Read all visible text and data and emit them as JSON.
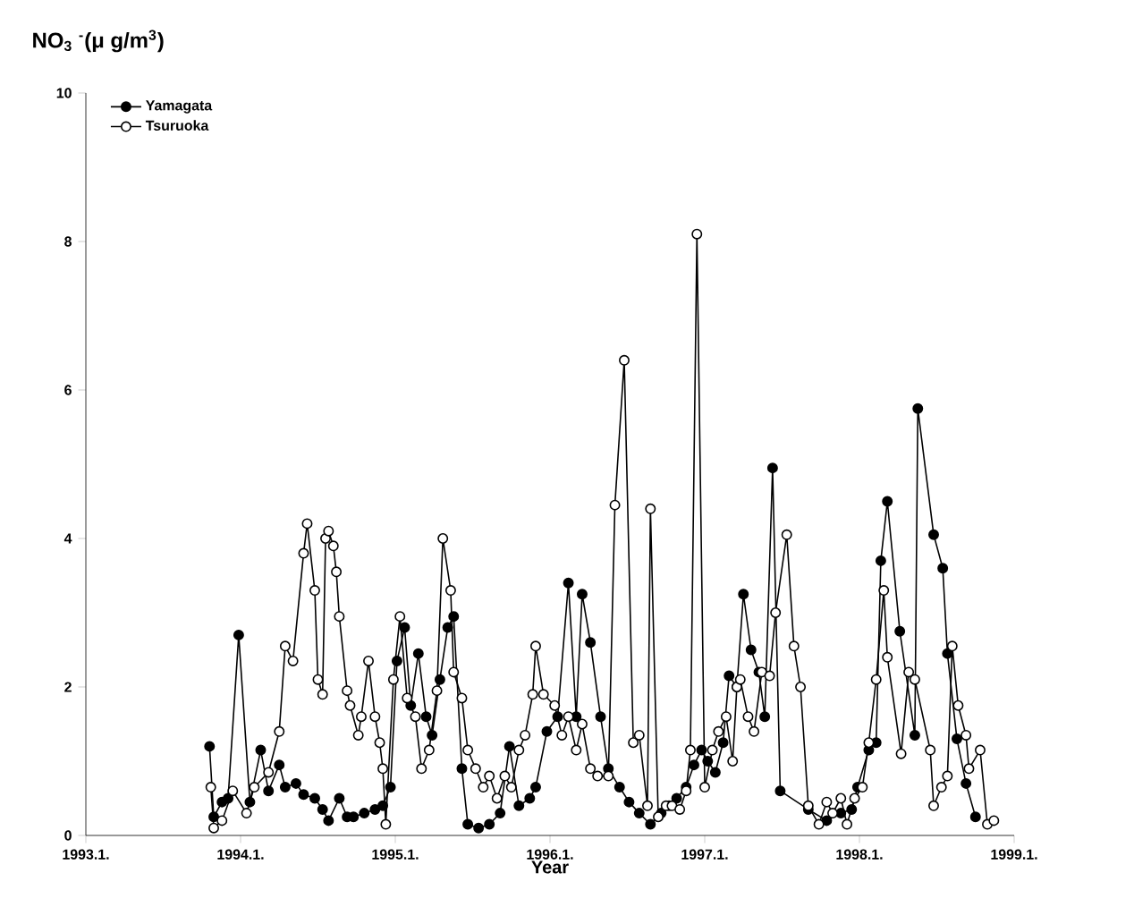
{
  "chart_data": {
    "type": "line",
    "ylabel": "NO$_{3}$ $^{-}$(μ g/m$^{3}$)",
    "xlabel": "Year",
    "xlim": [
      "1993-01",
      "1999-01"
    ],
    "ylim": [
      0,
      10
    ],
    "xticks": [
      {
        "value": "1993-01",
        "label": "1993.1."
      },
      {
        "value": "1994-01",
        "label": "1994.1."
      },
      {
        "value": "1995-01",
        "label": "1995.1."
      },
      {
        "value": "1996-01",
        "label": "1996.1."
      },
      {
        "value": "1997-01",
        "label": "1997.1."
      },
      {
        "value": "1998-01",
        "label": "1998.1."
      },
      {
        "value": "1999-01",
        "label": "1999.1."
      }
    ],
    "yticks": [
      0,
      2,
      4,
      6,
      8,
      10
    ],
    "legend": "top left",
    "marker": "circle",
    "line_style": "solid",
    "series": [
      {
        "name": "Yamagata",
        "color": "#000000",
        "x": [
          "1993-10-19",
          "1993-10-29",
          "1993-11-18",
          "1993-12-02",
          "1993-12-27",
          "1994-01-23",
          "1994-02-18",
          "1994-03-06",
          "1994-04-01",
          "1994-04-15",
          "1994-05-10",
          "1994-05-28",
          "1994-06-24",
          "1994-07-12",
          "1994-07-26",
          "1994-08-21",
          "1994-09-09",
          "1994-09-24",
          "1994-10-19",
          "1994-11-14",
          "1994-12-02",
          "1994-12-20",
          "1995-01-05",
          "1995-01-23",
          "1995-02-07",
          "1995-02-25",
          "1995-03-13",
          "1995-03-27",
          "1995-04-15",
          "1995-05-03",
          "1995-05-17",
          "1995-06-06",
          "1995-06-20",
          "1995-07-15",
          "1995-08-10",
          "1995-09-05",
          "1995-09-27",
          "1995-10-19",
          "1995-11-14",
          "1995-11-28",
          "1995-12-24",
          "1996-01-19",
          "1996-02-14",
          "1996-03-02",
          "1996-03-16",
          "1996-04-05",
          "1996-04-29",
          "1996-05-17",
          "1996-06-13",
          "1996-07-05",
          "1996-07-29",
          "1996-08-25",
          "1996-09-20",
          "1996-10-08",
          "1996-10-26",
          "1996-11-18",
          "1996-12-06",
          "1996-12-24",
          "1997-01-08",
          "1997-01-26",
          "1997-02-14",
          "1997-02-28",
          "1997-03-16",
          "1997-04-01",
          "1997-04-19",
          "1997-05-07",
          "1997-05-21",
          "1997-06-09",
          "1997-06-27",
          "1997-09-02",
          "1997-10-15",
          "1997-11-18",
          "1997-12-13",
          "1997-12-27",
          "1998-01-23",
          "1998-02-10",
          "1998-02-21",
          "1998-03-06",
          "1998-04-05",
          "1998-05-10",
          "1998-05-17",
          "1998-06-24",
          "1998-07-15",
          "1998-07-26",
          "1998-08-18",
          "1998-09-09",
          "1998-10-01"
        ],
        "values": [
          1.2,
          0.25,
          0.45,
          0.5,
          2.7,
          0.45,
          1.15,
          0.6,
          0.95,
          0.65,
          0.7,
          0.55,
          0.5,
          0.35,
          0.2,
          0.5,
          0.25,
          0.25,
          0.3,
          0.35,
          0.4,
          0.65,
          2.35,
          2.8,
          1.75,
          2.45,
          1.6,
          1.35,
          2.1,
          2.8,
          2.95,
          0.9,
          0.15,
          0.1,
          0.15,
          0.3,
          1.2,
          0.4,
          0.5,
          0.65,
          1.4,
          1.6,
          3.4,
          1.6,
          3.25,
          2.6,
          1.6,
          0.9,
          0.65,
          0.45,
          0.3,
          0.15,
          0.3,
          0.4,
          0.5,
          0.65,
          0.95,
          1.15,
          1.0,
          0.85,
          1.25,
          2.15,
          2.0,
          3.25,
          2.5,
          2.2,
          1.6,
          4.95,
          0.6,
          0.35,
          0.2,
          0.3,
          0.35,
          0.65,
          1.15,
          1.25,
          3.7,
          4.5,
          2.75,
          1.35,
          5.75,
          4.05,
          3.6,
          2.45,
          1.3,
          0.7,
          0.25
        ]
      },
      {
        "name": "Tsuruoka",
        "color": "#ffffff",
        "x": [
          "1993-10-22",
          "1993-10-29",
          "1993-11-18",
          "1993-12-13",
          "1994-01-15",
          "1994-02-03",
          "1994-03-06",
          "1994-04-01",
          "1994-04-15",
          "1994-05-03",
          "1994-05-28",
          "1994-06-06",
          "1994-06-24",
          "1994-07-01",
          "1994-07-12",
          "1994-07-19",
          "1994-07-26",
          "1994-08-07",
          "1994-08-14",
          "1994-08-21",
          "1994-09-09",
          "1994-09-16",
          "1994-10-05",
          "1994-10-12",
          "1994-10-29",
          "1994-11-14",
          "1994-11-25",
          "1994-12-02",
          "1994-12-09",
          "1994-12-27",
          "1995-01-12",
          "1995-01-29",
          "1995-02-18",
          "1995-03-02",
          "1995-03-20",
          "1995-04-08",
          "1995-04-22",
          "1995-05-10",
          "1995-05-17",
          "1995-06-06",
          "1995-06-20",
          "1995-07-08",
          "1995-07-26",
          "1995-08-10",
          "1995-08-28",
          "1995-09-16",
          "1995-10-01",
          "1995-10-19",
          "1995-11-03",
          "1995-11-21",
          "1995-11-28",
          "1995-12-16",
          "1996-01-12",
          "1996-01-29",
          "1996-02-14",
          "1996-03-02",
          "1996-03-16",
          "1996-04-05",
          "1996-04-22",
          "1996-05-17",
          "1996-06-02",
          "1996-06-24",
          "1996-07-15",
          "1996-07-29",
          "1996-08-18",
          "1996-08-25",
          "1996-09-13",
          "1996-10-01",
          "1996-10-15",
          "1996-11-03",
          "1996-11-18",
          "1996-11-28",
          "1996-12-13",
          "1997-01-01",
          "1997-01-19",
          "1997-02-03",
          "1997-02-21",
          "1997-03-06",
          "1997-03-16",
          "1997-03-24",
          "1997-04-12",
          "1997-04-26",
          "1997-05-14",
          "1997-06-02",
          "1997-06-16",
          "1997-07-12",
          "1997-07-29",
          "1997-08-14",
          "1997-09-02",
          "1997-09-27",
          "1997-10-15",
          "1997-10-29",
          "1997-11-18",
          "1997-12-02",
          "1997-12-20",
          "1998-01-08",
          "1998-01-23",
          "1998-02-10",
          "1998-02-28",
          "1998-03-06",
          "1998-04-08",
          "1998-04-26",
          "1998-05-10",
          "1998-06-16",
          "1998-06-24",
          "1998-07-12",
          "1998-07-26",
          "1998-08-07",
          "1998-08-21",
          "1998-09-09",
          "1998-09-16",
          "1998-10-12",
          "1998-10-29",
          "1998-11-14"
        ],
        "values": [
          0.65,
          0.1,
          0.2,
          0.6,
          0.3,
          0.65,
          0.85,
          1.4,
          2.55,
          2.35,
          3.8,
          4.2,
          3.3,
          2.1,
          1.9,
          4.0,
          4.1,
          3.9,
          3.55,
          2.95,
          1.95,
          1.75,
          1.35,
          1.6,
          2.35,
          1.6,
          1.25,
          0.9,
          0.15,
          2.1,
          2.95,
          1.85,
          1.6,
          0.9,
          1.15,
          1.95,
          4.0,
          3.3,
          2.2,
          1.85,
          1.15,
          0.9,
          0.65,
          0.8,
          0.5,
          0.8,
          0.65,
          1.15,
          1.35,
          1.9,
          2.55,
          1.9,
          1.75,
          1.35,
          1.6,
          1.15,
          1.5,
          0.9,
          0.8,
          0.8,
          4.45,
          6.4,
          1.25,
          1.35,
          0.4,
          4.4,
          0.25,
          0.4,
          0.4,
          0.35,
          0.6,
          1.15,
          8.1,
          0.65,
          1.15,
          1.4,
          1.6,
          1.0,
          2.0,
          2.1,
          1.6,
          1.4,
          2.2,
          2.15,
          3.0,
          4.05,
          2.55,
          2.0,
          0.4,
          0.15,
          0.45,
          0.3,
          0.5,
          0.15,
          0.5,
          0.65,
          1.25,
          2.1,
          3.3,
          2.4,
          1.1,
          2.2,
          2.1,
          1.15,
          0.4,
          0.65,
          0.8,
          2.55,
          1.75,
          1.35,
          0.9,
          1.15,
          0.15,
          0.2
        ]
      }
    ]
  }
}
